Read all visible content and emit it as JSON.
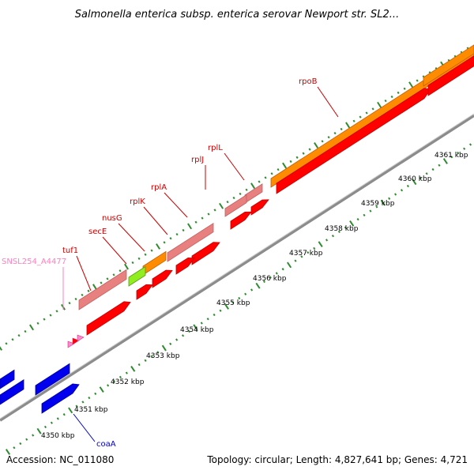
{
  "title": "Salmonella enterica subsp. enterica serovar Newport str. SL2...",
  "footer": {
    "accession": "Accession: NC_011080",
    "summary": "Topology: circular; Length: 4,827,641 bp; Genes: 4,721"
  },
  "colors": {
    "backbone": "#8c8c8c",
    "tick": "#2e8b2e",
    "rrna": "#ff8c00",
    "rrna_label": "#cc0000",
    "gene_red": "#ff0000",
    "gene_red_dark": "#c00000",
    "gene_pink": "#e98080",
    "gene_pink_dark": "#c06060",
    "gene_blue": "#0000ee",
    "gene_blue_dark": "#000099",
    "gene_green": "#90ee20",
    "label_red": "#cc0000",
    "label_pink": "#ff80c0",
    "label_blue": "#0000cc"
  },
  "scale_labels": [
    "4350 kbp",
    "4351 kbp",
    "4352 kbp",
    "4353 kbp",
    "4354 kbp",
    "4355 kbp",
    "4356 kbp",
    "4357 kbp",
    "4358 kbp",
    "4359 kbp",
    "4360 kbp",
    "4361 kbp"
  ],
  "gene_labels": {
    "rpoB": "rpoB",
    "rplL": "rplL",
    "rplJ": "rplJ",
    "rplA": "rplA",
    "rplK": "rplK",
    "nusG": "nusG",
    "secE": "secE",
    "tuf1": "tuf1",
    "snsl": "SNSL254_A4477",
    "coaA": "coaA"
  }
}
